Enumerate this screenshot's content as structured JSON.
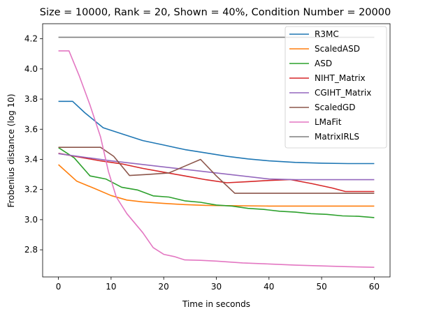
{
  "chart_data": {
    "type": "line",
    "title": "Size = 10000, Rank = 20, Shown = 40%, Condition Number = 20000",
    "xlabel": "Time in seconds",
    "ylabel": "Frobenius distance (log 10)",
    "xlim": [
      -3,
      63
    ],
    "ylim": [
      2.62,
      4.3
    ],
    "xticks": [
      0,
      10,
      20,
      30,
      40,
      50,
      60
    ],
    "yticks": [
      2.8,
      3.0,
      3.2,
      3.4,
      3.6,
      3.8,
      4.0,
      4.2
    ],
    "grid": false,
    "legend": "top-right",
    "series": [
      {
        "name": "R3MC",
        "color": "#1f77b4",
        "x": [
          0,
          2.7,
          5,
          8.5,
          12,
          16,
          20,
          24,
          28,
          32,
          36,
          40,
          45,
          50,
          55,
          60
        ],
        "y": [
          3.785,
          3.785,
          3.71,
          3.61,
          3.57,
          3.525,
          3.495,
          3.465,
          3.443,
          3.42,
          3.403,
          3.39,
          3.38,
          3.375,
          3.372,
          3.372
        ]
      },
      {
        "name": "ScaledASD",
        "color": "#ff7f0e",
        "x": [
          0,
          3.5,
          7,
          10,
          13,
          16,
          20,
          24,
          28,
          32,
          40,
          50,
          60
        ],
        "y": [
          3.365,
          3.255,
          3.205,
          3.16,
          3.13,
          3.118,
          3.108,
          3.1,
          3.095,
          3.093,
          3.09,
          3.09,
          3.09
        ]
      },
      {
        "name": "ASD",
        "color": "#2ca02c",
        "x": [
          0,
          3,
          6,
          9,
          12,
          15,
          18,
          21,
          24,
          27,
          30,
          33,
          36,
          39,
          42,
          45,
          48,
          51,
          54,
          57,
          60
        ],
        "y": [
          3.478,
          3.41,
          3.29,
          3.27,
          3.215,
          3.197,
          3.158,
          3.15,
          3.125,
          3.115,
          3.097,
          3.09,
          3.075,
          3.068,
          3.056,
          3.05,
          3.04,
          3.035,
          3.025,
          3.022,
          3.014
        ]
      },
      {
        "name": "NIHT_Matrix",
        "color": "#d62728",
        "x": [
          0,
          4,
          8,
          12,
          16,
          20,
          24,
          28,
          32,
          36,
          40,
          44,
          48,
          52,
          54.5,
          57,
          60
        ],
        "y": [
          3.44,
          3.415,
          3.39,
          3.37,
          3.34,
          3.315,
          3.29,
          3.265,
          3.245,
          3.252,
          3.26,
          3.266,
          3.24,
          3.21,
          3.187,
          3.187,
          3.187
        ]
      },
      {
        "name": "CGIHT_Matrix",
        "color": "#9467bd",
        "x": [
          0,
          10,
          20,
          30,
          40,
          45,
          50,
          55,
          60
        ],
        "y": [
          3.438,
          3.39,
          3.35,
          3.31,
          3.27,
          3.265,
          3.265,
          3.265,
          3.265
        ]
      },
      {
        "name": "ScaledGD",
        "color": "#8c564b",
        "x": [
          0,
          4,
          8,
          10.5,
          13.5,
          17,
          21,
          24,
          27,
          30,
          33.5,
          40,
          50,
          60
        ],
        "y": [
          3.48,
          3.48,
          3.48,
          3.42,
          3.293,
          3.3,
          3.31,
          3.355,
          3.4,
          3.29,
          3.175,
          3.175,
          3.175,
          3.175
        ]
      },
      {
        "name": "LMaFit",
        "color": "#e377c2",
        "x": [
          0,
          2,
          4,
          6,
          8,
          9.5,
          11,
          13,
          16,
          18,
          20,
          22,
          24,
          27,
          30,
          35,
          40,
          45,
          50,
          55,
          60
        ],
        "y": [
          4.12,
          4.12,
          3.95,
          3.76,
          3.55,
          3.32,
          3.15,
          3.04,
          2.915,
          2.815,
          2.77,
          2.755,
          2.733,
          2.73,
          2.725,
          2.713,
          2.706,
          2.698,
          2.693,
          2.688,
          2.684
        ]
      },
      {
        "name": "MatrixIRLS",
        "color": "#7f7f7f",
        "x": [
          0,
          60
        ],
        "y": [
          4.21,
          4.21
        ]
      }
    ]
  }
}
